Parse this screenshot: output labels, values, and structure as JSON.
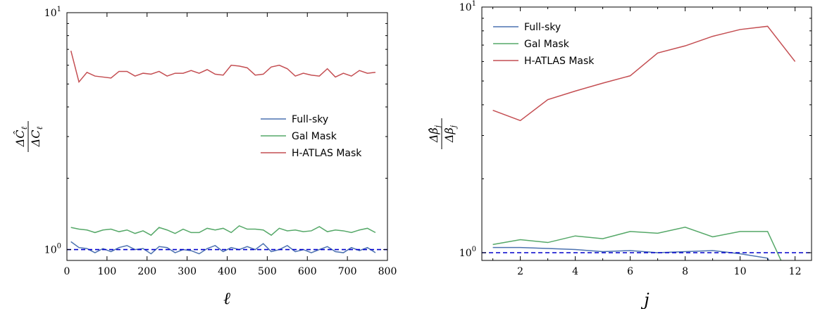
{
  "chart_data": [
    {
      "type": "line",
      "xlabel": "ℓ",
      "ylabel": {
        "num": "ΔĈ",
        "num_sub": "ℓ",
        "den": "ΔC",
        "den_sub": "ℓ"
      },
      "xlim": [
        0,
        800
      ],
      "ylim": [
        0.9,
        10
      ],
      "yscale": "log",
      "xticks": [
        0,
        100,
        200,
        300,
        400,
        500,
        600,
        700,
        800
      ],
      "xtick_labels": [
        "0",
        "100",
        "200",
        "300",
        "400",
        "500",
        "600",
        "700",
        "800"
      ],
      "yticks": [
        1,
        10
      ],
      "ytick_labels": [
        {
          "base": "10",
          "exp": "0"
        },
        {
          "base": "10",
          "exp": "1"
        }
      ],
      "legend_position": "center-right",
      "reference_line": {
        "y": 1.0,
        "color": "#0000cc",
        "style": "dashed"
      },
      "series": [
        {
          "name": "Full-sky",
          "color": "#4c72b0",
          "x": [
            10,
            30,
            50,
            70,
            90,
            110,
            130,
            150,
            170,
            190,
            210,
            230,
            250,
            270,
            290,
            310,
            330,
            350,
            370,
            390,
            410,
            430,
            450,
            470,
            490,
            510,
            530,
            550,
            570,
            590,
            610,
            630,
            650,
            670,
            690,
            710,
            730,
            750,
            770
          ],
          "y": [
            1.08,
            1.02,
            1.01,
            0.97,
            1.01,
            0.98,
            1.02,
            1.04,
            1.0,
            1.01,
            0.96,
            1.03,
            1.02,
            0.97,
            1.0,
            0.99,
            0.96,
            1.01,
            1.04,
            0.98,
            1.02,
            1.0,
            1.03,
            1.0,
            1.06,
            0.98,
            1.0,
            1.04,
            0.98,
            1.0,
            0.97,
            1.0,
            1.03,
            0.98,
            0.97,
            1.02,
            0.99,
            1.02,
            0.97
          ]
        },
        {
          "name": "Gal Mask",
          "color": "#55a868",
          "x": [
            10,
            30,
            50,
            70,
            90,
            110,
            130,
            150,
            170,
            190,
            210,
            230,
            250,
            270,
            290,
            310,
            330,
            350,
            370,
            390,
            410,
            430,
            450,
            470,
            490,
            510,
            530,
            550,
            570,
            590,
            610,
            630,
            650,
            670,
            690,
            710,
            730,
            750,
            770
          ],
          "y": [
            1.24,
            1.22,
            1.21,
            1.18,
            1.21,
            1.22,
            1.19,
            1.21,
            1.17,
            1.2,
            1.15,
            1.24,
            1.21,
            1.17,
            1.22,
            1.18,
            1.18,
            1.23,
            1.21,
            1.23,
            1.18,
            1.26,
            1.22,
            1.22,
            1.21,
            1.15,
            1.23,
            1.2,
            1.21,
            1.19,
            1.2,
            1.25,
            1.19,
            1.21,
            1.2,
            1.18,
            1.21,
            1.23,
            1.18
          ]
        },
        {
          "name": "H-ATLAS Mask",
          "color": "#c44e52",
          "x": [
            10,
            30,
            50,
            70,
            90,
            110,
            130,
            150,
            170,
            190,
            210,
            230,
            250,
            270,
            290,
            310,
            330,
            350,
            370,
            390,
            410,
            430,
            450,
            470,
            490,
            510,
            530,
            550,
            570,
            590,
            610,
            630,
            650,
            670,
            690,
            710,
            730,
            750,
            770
          ],
          "y": [
            6.9,
            5.1,
            5.6,
            5.4,
            5.35,
            5.3,
            5.65,
            5.65,
            5.4,
            5.55,
            5.5,
            5.65,
            5.4,
            5.55,
            5.55,
            5.7,
            5.55,
            5.75,
            5.5,
            5.45,
            6.0,
            5.95,
            5.85,
            5.45,
            5.5,
            5.9,
            6.0,
            5.8,
            5.4,
            5.55,
            5.45,
            5.4,
            5.8,
            5.35,
            5.55,
            5.4,
            5.7,
            5.55,
            5.6
          ]
        }
      ]
    },
    {
      "type": "line",
      "xlabel": "j",
      "ylabel": {
        "num": "Δβ̂",
        "num_sub": "j",
        "den": "Δβ",
        "den_sub": "j"
      },
      "xlim": [
        0.6,
        12.6
      ],
      "ylim": [
        0.93,
        10
      ],
      "yscale": "log",
      "xticks": [
        2,
        4,
        6,
        8,
        10,
        12
      ],
      "xtick_labels": [
        "2",
        "4",
        "6",
        "8",
        "10",
        "12"
      ],
      "yticks": [
        1,
        10
      ],
      "ytick_labels": [
        {
          "base": "10",
          "exp": "0"
        },
        {
          "base": "10",
          "exp": "1"
        }
      ],
      "legend_position": "top-left",
      "reference_line": {
        "y": 1.0,
        "color": "#0000cc",
        "style": "dashed"
      },
      "series": [
        {
          "name": "Full-sky",
          "color": "#4c72b0",
          "x": [
            1,
            2,
            3,
            4,
            5,
            6,
            7,
            8,
            9,
            10,
            11,
            12
          ],
          "y": [
            1.05,
            1.05,
            1.04,
            1.03,
            1.01,
            1.02,
            1.0,
            1.01,
            1.02,
            0.99,
            0.95,
            0.6
          ]
        },
        {
          "name": "Gal Mask",
          "color": "#55a868",
          "x": [
            1,
            2,
            3,
            4,
            5,
            6,
            7,
            8,
            9,
            10,
            11,
            12
          ],
          "y": [
            1.08,
            1.13,
            1.1,
            1.17,
            1.14,
            1.22,
            1.2,
            1.27,
            1.16,
            1.22,
            1.22,
            0.7
          ]
        },
        {
          "name": "H-ATLAS Mask",
          "color": "#c44e52",
          "x": [
            1,
            2,
            3,
            4,
            5,
            6,
            7,
            8,
            9,
            10,
            11,
            12
          ],
          "y": [
            3.8,
            3.45,
            4.2,
            4.55,
            4.9,
            5.25,
            6.5,
            6.95,
            7.6,
            8.1,
            8.35,
            6.0
          ]
        }
      ]
    }
  ]
}
